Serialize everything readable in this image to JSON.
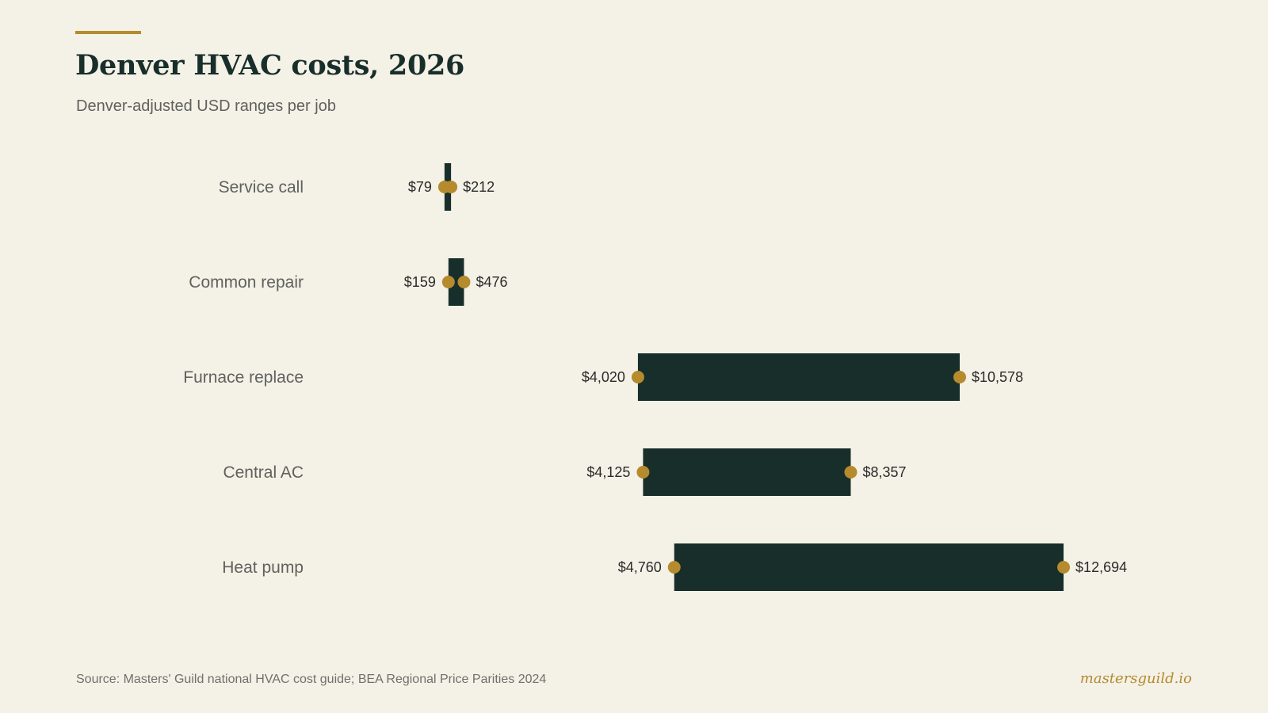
{
  "header": {
    "title": "Denver HVAC costs, 2026",
    "subtitle": "Denver-adjusted USD ranges per job"
  },
  "footer": {
    "source": "Source: Masters' Guild national HVAC cost guide; BEA Regional Price Parities 2024",
    "brand": "mastersguild.io"
  },
  "colors": {
    "background": "#f4f1e7",
    "bar": "#182e2a",
    "accent": "#b58b2e",
    "category_text": "#5f625d",
    "value_text": "#2a2c2a"
  },
  "chart_data": {
    "type": "range-bar",
    "title": "Denver HVAC costs, 2026",
    "subtitle": "Denver-adjusted USD ranges per job",
    "categories": [
      "Service call",
      "Common repair",
      "Furnace replace",
      "Central AC",
      "Heat pump"
    ],
    "low": [
      79,
      159,
      4020,
      4125,
      4760
    ],
    "high": [
      212,
      476,
      10578,
      8357,
      12694
    ],
    "low_labels": [
      "$79",
      "$159",
      "$4,020",
      "$4,125",
      "$4,760"
    ],
    "high_labels": [
      "$212",
      "$476",
      "$10,578",
      "$8,357",
      "$12,694"
    ],
    "unit": "USD",
    "grid": false,
    "legend": false
  }
}
